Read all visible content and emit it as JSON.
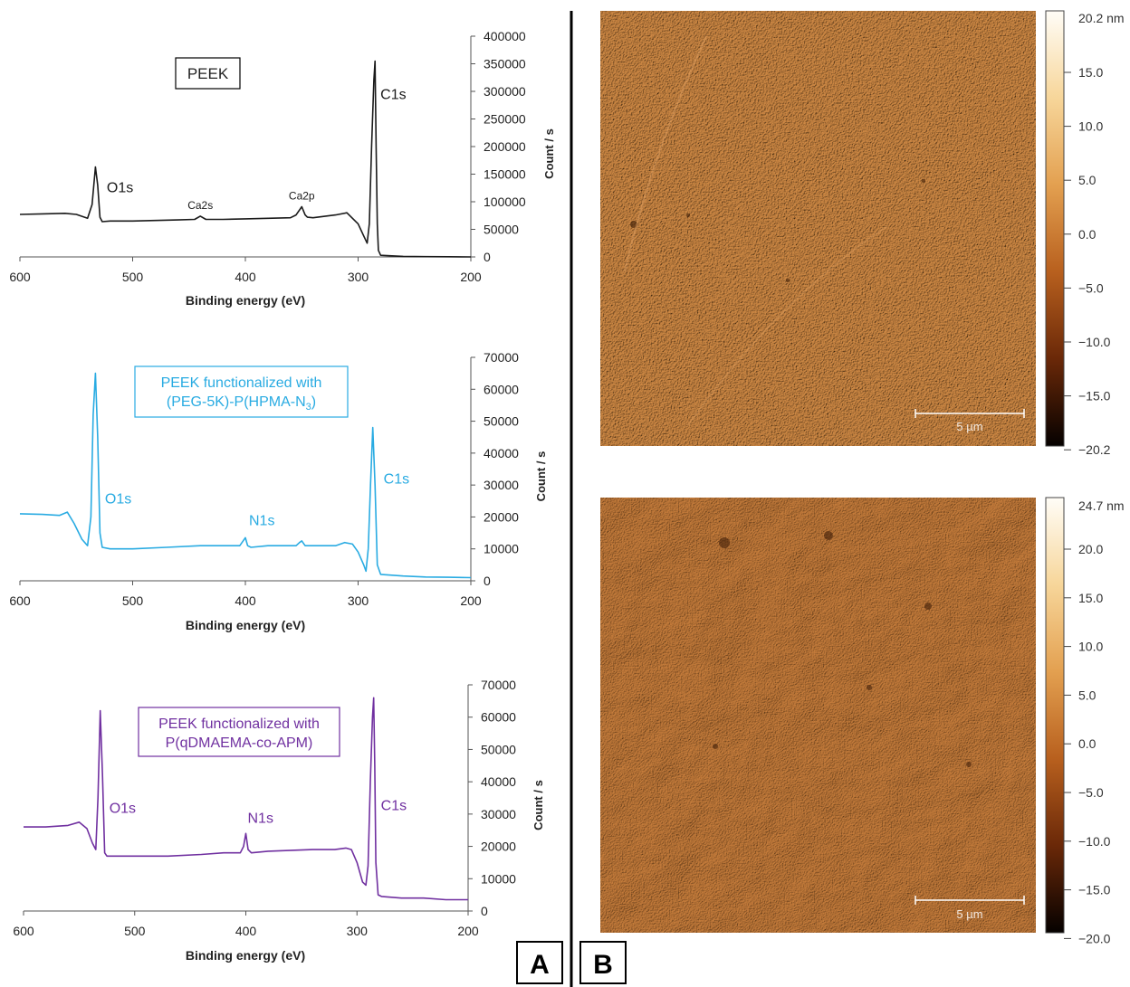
{
  "chart_data": [
    {
      "type": "line",
      "title": "PEEK",
      "xlabel": "Binding energy (eV)",
      "ylabel": "Count / s",
      "xlim": [
        600,
        200
      ],
      "ylim": [
        0,
        400000
      ],
      "color": "#1a1a1a",
      "xticks": [
        600,
        500,
        400,
        300,
        200
      ],
      "yticks": [
        0,
        50000,
        100000,
        150000,
        200000,
        250000,
        300000,
        350000,
        400000
      ],
      "x": [
        600,
        580,
        560,
        550,
        540,
        536,
        533,
        531,
        529,
        527,
        520,
        500,
        480,
        460,
        445,
        440,
        435,
        420,
        400,
        380,
        360,
        355,
        350,
        347,
        345,
        340,
        320,
        310,
        300,
        295,
        292,
        290,
        288,
        286,
        285,
        284,
        283,
        282,
        280,
        260,
        240,
        220,
        200
      ],
      "y": [
        77000,
        78000,
        79000,
        77000,
        70000,
        95000,
        163000,
        130000,
        72000,
        64000,
        65000,
        65000,
        66000,
        67000,
        68000,
        74000,
        68000,
        68000,
        69000,
        70000,
        71000,
        76000,
        91000,
        76000,
        72000,
        71000,
        76000,
        80000,
        60000,
        38000,
        25000,
        60000,
        200000,
        320000,
        355000,
        200000,
        60000,
        12000,
        3000,
        1000,
        500,
        300,
        0
      ],
      "annotations": [
        {
          "text": "O1s",
          "x": 531,
          "y": 163000
        },
        {
          "text": "Ca2s",
          "x": 440,
          "y": 74000
        },
        {
          "text": "Ca2p",
          "x": 350,
          "y": 91000
        },
        {
          "text": "C1s",
          "x": 285,
          "y": 355000
        }
      ]
    },
    {
      "type": "line",
      "title": "PEEK functionalized  with (PEG-5K)-P(HPMA-N₃)",
      "title_lines": [
        "PEEK functionalized  with",
        "(PEG-5K)-P(HPMA-N",
        "3",
        ")"
      ],
      "xlabel": "Binding energy (eV)",
      "ylabel": "Count / s",
      "xlim": [
        600,
        200
      ],
      "ylim": [
        0,
        70000
      ],
      "color": "#29abe2",
      "xticks": [
        600,
        500,
        400,
        300,
        200
      ],
      "yticks": [
        0,
        10000,
        20000,
        30000,
        40000,
        50000,
        60000,
        70000
      ],
      "x": [
        600,
        580,
        565,
        558,
        552,
        545,
        540,
        537,
        535,
        533,
        531,
        529,
        527,
        520,
        500,
        470,
        440,
        420,
        405,
        402,
        400,
        398,
        395,
        380,
        355,
        352,
        350,
        347,
        340,
        320,
        312,
        305,
        300,
        295,
        293,
        291,
        289,
        287,
        285,
        283,
        280,
        260,
        240,
        220,
        200
      ],
      "y": [
        21000,
        20800,
        20500,
        21500,
        18000,
        13000,
        11000,
        20000,
        52000,
        65000,
        45000,
        15000,
        10500,
        10000,
        10000,
        10500,
        11000,
        11000,
        11000,
        12500,
        13500,
        11000,
        10500,
        11000,
        11000,
        12000,
        12500,
        11000,
        11000,
        11000,
        12000,
        11500,
        9000,
        5000,
        3000,
        10000,
        30000,
        48000,
        30000,
        5000,
        2000,
        1500,
        1200,
        1100,
        1000
      ],
      "annotations": [
        {
          "text": "O1s",
          "x": 531,
          "y": 65000
        },
        {
          "text": "N1s",
          "x": 400,
          "y": 13500
        },
        {
          "text": "C1s",
          "x": 287,
          "y": 48000
        }
      ]
    },
    {
      "type": "line",
      "title": "PEEK functionalized  with P(qDMAEMA-co-APM)",
      "title_lines": [
        "PEEK functionalized  with",
        "P(qDMAEMA-co-APM)"
      ],
      "xlabel": "Binding energy (eV)",
      "ylabel": "Count / s",
      "xlim": [
        600,
        200
      ],
      "ylim": [
        0,
        70000
      ],
      "color": "#7030a0",
      "xticks": [
        600,
        500,
        400,
        300,
        200
      ],
      "yticks": [
        0,
        10000,
        20000,
        30000,
        40000,
        50000,
        60000,
        70000
      ],
      "x": [
        600,
        580,
        560,
        550,
        543,
        538,
        535,
        533,
        531,
        529,
        527,
        525,
        520,
        500,
        470,
        440,
        420,
        405,
        402,
        400,
        398,
        395,
        380,
        340,
        320,
        310,
        305,
        300,
        295,
        292,
        290,
        288,
        286,
        285,
        284,
        283,
        281,
        278,
        260,
        240,
        220,
        200
      ],
      "y": [
        26000,
        26000,
        26500,
        27500,
        25500,
        21000,
        19000,
        35000,
        62000,
        42000,
        18000,
        17000,
        17000,
        17000,
        17000,
        17500,
        18000,
        18000,
        20000,
        24000,
        19000,
        18000,
        18500,
        19000,
        19000,
        19500,
        19000,
        15000,
        9000,
        8000,
        14000,
        40000,
        60000,
        66000,
        45000,
        15000,
        5000,
        4500,
        4000,
        4000,
        3500,
        3500
      ],
      "annotations": [
        {
          "text": "O1s",
          "x": 531,
          "y": 62000
        },
        {
          "text": "N1s",
          "x": 400,
          "y": 24000
        },
        {
          "text": "C1s",
          "x": 285,
          "y": 66000
        }
      ]
    }
  ],
  "afm_images": [
    {
      "colorbar_max": "20.2 nm",
      "colorbar_ticks": [
        "15.0",
        "10.0",
        "5.0",
        "0.0",
        "−5.0",
        "−10.0",
        "−15.0",
        "−20.2"
      ],
      "scale_bar": "5 µm",
      "base_color": "#d08a45"
    },
    {
      "colorbar_max": "24.7 nm",
      "colorbar_ticks": [
        "20.0",
        "15.0",
        "10.0",
        "5.0",
        "0.0",
        "−5.0",
        "−10.0",
        "−15.0",
        "−20.0"
      ],
      "scale_bar": "5 µm",
      "base_color": "#c87e3c"
    }
  ],
  "panel_labels": [
    "A",
    "B"
  ]
}
